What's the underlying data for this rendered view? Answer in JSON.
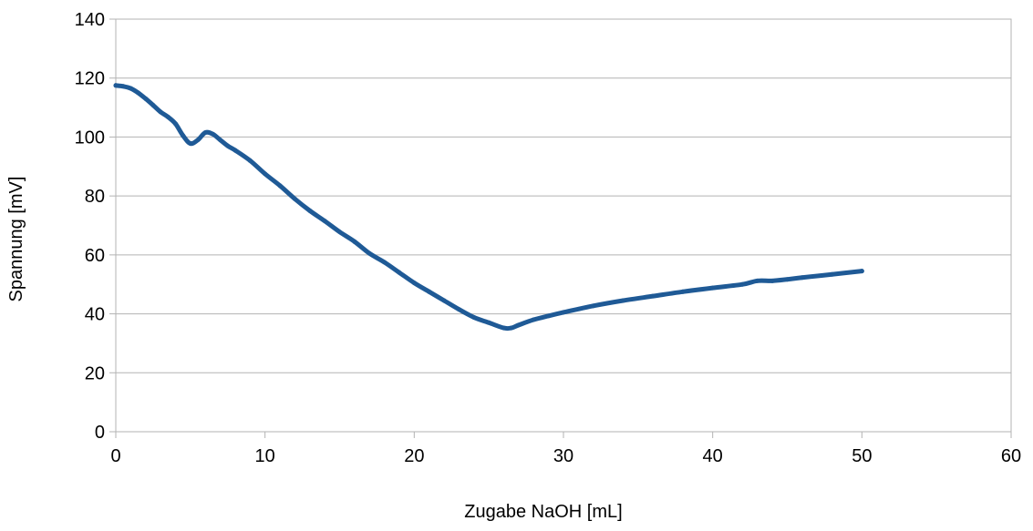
{
  "chart_data": {
    "type": "line",
    "title": "",
    "xlabel": "Zugabe NaOH [mL]",
    "ylabel": "Spannung [mV]",
    "xlim": [
      0,
      60
    ],
    "ylim": [
      0,
      140
    ],
    "x_ticks": [
      0,
      10,
      20,
      30,
      40,
      50,
      60
    ],
    "y_ticks": [
      0,
      20,
      40,
      60,
      80,
      100,
      120,
      140
    ],
    "grid": "horizontal",
    "legend": "none",
    "series": [
      {
        "color": "#1f5a96",
        "points": [
          [
            0,
            117.5
          ],
          [
            0.5,
            117.2
          ],
          [
            1,
            116.5
          ],
          [
            1.5,
            115
          ],
          [
            2,
            113
          ],
          [
            2.5,
            110.8
          ],
          [
            3,
            108.5
          ],
          [
            3.5,
            106.8
          ],
          [
            4,
            104.5
          ],
          [
            4.5,
            100.5
          ],
          [
            5,
            97.8
          ],
          [
            5.5,
            99
          ],
          [
            6,
            101.5
          ],
          [
            6.5,
            101
          ],
          [
            7,
            99
          ],
          [
            7.5,
            97
          ],
          [
            8,
            95.5
          ],
          [
            9,
            92
          ],
          [
            10,
            87.5
          ],
          [
            11,
            83.5
          ],
          [
            12,
            79
          ],
          [
            13,
            75
          ],
          [
            14,
            71.5
          ],
          [
            15,
            67.8
          ],
          [
            16,
            64.5
          ],
          [
            17,
            60.5
          ],
          [
            18,
            57.5
          ],
          [
            19,
            54
          ],
          [
            20,
            50.5
          ],
          [
            21,
            47.5
          ],
          [
            22,
            44.5
          ],
          [
            23,
            41.5
          ],
          [
            24,
            38.8
          ],
          [
            25,
            37
          ],
          [
            26,
            35.2
          ],
          [
            26.5,
            35.2
          ],
          [
            27,
            36.2
          ],
          [
            28,
            38
          ],
          [
            29,
            39.3
          ],
          [
            30,
            40.5
          ],
          [
            32,
            42.7
          ],
          [
            34,
            44.5
          ],
          [
            36,
            46
          ],
          [
            38,
            47.5
          ],
          [
            40,
            48.8
          ],
          [
            42,
            50
          ],
          [
            43,
            51.2
          ],
          [
            44,
            51.2
          ],
          [
            45,
            51.7
          ],
          [
            46,
            52.3
          ],
          [
            48,
            53.4
          ],
          [
            50,
            54.5
          ]
        ]
      }
    ]
  }
}
